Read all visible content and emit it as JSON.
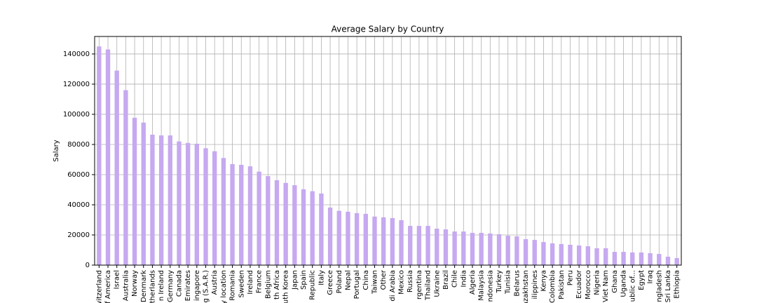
{
  "chart_data": {
    "type": "bar",
    "title": "Average Salary by Country",
    "y_label": "Salary",
    "categories": [
      "witzerland",
      "f America",
      "Israel",
      "Australia",
      "Norway",
      "Denmark",
      "therlands",
      "n Ireland",
      "Germany",
      "Canada",
      "Emirates",
      "ingapore",
      "g (S.A.R.)",
      "Austria",
      "y location",
      "Romania",
      "Sweden",
      "Ireland",
      "France",
      "Belgium",
      "th Africa",
      "uth Korea",
      "Japan",
      "Spain",
      "Republic",
      "Italy",
      "Greece",
      "Poland",
      "Nepal",
      "Portugal",
      "China",
      "Taiwan",
      "Other",
      "di Arabia",
      "Mexico",
      "Russia",
      "rgentina",
      "Thailand",
      "Ukraine",
      "Brazil",
      "Chile",
      "India",
      "Algeria",
      "Malaysia",
      "ndonesia",
      "Turkey",
      "Tunisia",
      "Belarus",
      "azakhstan",
      "ilippines",
      "Kenya",
      "Colombia",
      "Pakistan",
      "Peru",
      "Ecuador",
      "Morocco",
      "Nigeria",
      "Viet Nam",
      "Ghana",
      "Uganda",
      "ublic of...",
      "Egypt",
      "Iraq",
      "ngladesh",
      "Sri Lanka",
      "Ethiopia"
    ],
    "values": [
      145000,
      143000,
      129000,
      116000,
      97700,
      94500,
      86500,
      86000,
      86000,
      82000,
      81000,
      80500,
      77500,
      75500,
      71000,
      67000,
      66500,
      65500,
      62000,
      59000,
      56300,
      54500,
      53000,
      50300,
      49000,
      47500,
      38200,
      36000,
      35400,
      34500,
      34000,
      32200,
      31700,
      31200,
      29800,
      26000,
      26000,
      26000,
      24200,
      23700,
      22300,
      22300,
      21400,
      21400,
      21000,
      20500,
      19500,
      19100,
      17200,
      16700,
      15300,
      14400,
      14000,
      13500,
      13000,
      12500,
      11200,
      11200,
      8800,
      8800,
      8400,
      8400,
      7900,
      7400,
      5600,
      4700
    ],
    "color": "#c6a9f0",
    "ylim": [
      0,
      151600
    ],
    "yticks": [
      0,
      20000,
      40000,
      60000,
      80000,
      100000,
      120000,
      140000
    ],
    "grid": true
  }
}
